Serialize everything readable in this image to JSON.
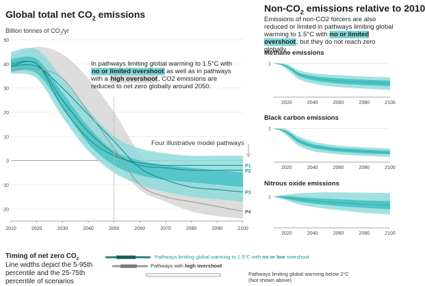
{
  "left_panel": {
    "title": "Global total net CO2 emissions",
    "title_pre": "Global total net CO",
    "title_sub": "2",
    "title_post": " emissions",
    "unit_pre": "Billion tonnes of CO",
    "unit_sub": "2",
    "unit_post": "/yr",
    "annotation": {
      "p1": "In pathways limiting global warming to 1.5°C with ",
      "hl1": "no or limited overshoot",
      "p2": " as well as in pathways with a ",
      "hl2": "high overshoot",
      "p3": ", CO2 emissions are reduced to net zero globally around 2050."
    },
    "pathways_label": "Four illustrative model pathways"
  },
  "right_panel": {
    "title_pre": "Non-CO",
    "title_sub": "2",
    "title_post": " emissions relative to 2010",
    "desc": {
      "p1": "Emissions of non-CO2 forcers are also reduced or limited in pathways limiting global warming to 1.5°C with ",
      "hl": "no or limited overshoot",
      "p2": ", but they do not reach zero globally."
    },
    "methane_title": "Methane emissions",
    "black_carbon_title": "Black carbon emissions",
    "nitrous_title": "Nitrous oxide emissions"
  },
  "legend": {
    "timing_title_pre": "Timing of net zero CO",
    "timing_title_sub": "2",
    "timing_desc": "Line widths depict the 5-95th percentile and the 25-75th percentile of scenarios",
    "item1_pre": "Pathways limiting global warming to 1.5°C with ",
    "item1_bold": "no or low",
    "item1_post": " overshoot",
    "item2_pre": "Pathways with ",
    "item2_bold": "high overshoot",
    "item3_line1": "Pathways limiting global warming below 2°C",
    "item3_line2": "(Not shown above)"
  },
  "colors": {
    "teal_outer": "#8fdada",
    "teal_inner": "#3cbfc0",
    "teal_line": "#1f8a8b",
    "grey_band": "#d6d6d6",
    "grey_line": "#9a9a9a",
    "label_teal": "#1a9a9a"
  },
  "chart_data": [
    {
      "type": "area",
      "title": "Global total net CO2 emissions",
      "ylabel": "Billion tonnes of CO2/yr",
      "xlim": [
        2010,
        2100
      ],
      "ylim": [
        -25,
        50
      ],
      "xticks": [
        2010,
        2020,
        2030,
        2040,
        2050,
        2060,
        2070,
        2080,
        2090,
        2100
      ],
      "yticks": [
        50,
        40,
        30,
        20,
        10,
        0,
        -10,
        -20
      ],
      "bands": [
        {
          "name": "high overshoot 5-95th",
          "x": [
            2010,
            2020,
            2030,
            2040,
            2050,
            2060,
            2070,
            2080,
            2090,
            2100
          ],
          "lower": [
            37,
            38,
            24,
            12,
            0,
            -12,
            -17,
            -21,
            -23,
            -24
          ],
          "upper": [
            43,
            47,
            44,
            34,
            20,
            3,
            -6,
            -8,
            -10,
            -12
          ]
        },
        {
          "name": "no or limited overshoot 5-95th",
          "x": [
            2010,
            2020,
            2030,
            2040,
            2050,
            2060,
            2070,
            2080,
            2090,
            2100
          ],
          "lower": [
            36,
            34,
            18,
            4,
            -5,
            -10,
            -13,
            -15,
            -16,
            -17
          ],
          "upper": [
            45,
            46,
            34,
            21,
            10,
            5,
            3,
            2,
            2,
            2
          ]
        },
        {
          "name": "no or limited overshoot 25-75th",
          "x": [
            2010,
            2020,
            2030,
            2040,
            2050,
            2060,
            2070,
            2080,
            2090,
            2100
          ],
          "lower": [
            37,
            36,
            22,
            7,
            -2,
            -6,
            -8,
            -9,
            -10,
            -11
          ],
          "upper": [
            42,
            42,
            28,
            14,
            4,
            0,
            -2,
            -3,
            -4,
            -5
          ]
        }
      ],
      "series": [
        {
          "name": "P1",
          "x": [
            2010,
            2020,
            2030,
            2040,
            2050,
            2060,
            2070,
            2080,
            2090,
            2100
          ],
          "values": [
            39,
            40,
            22,
            9,
            2,
            -1,
            -2,
            -2,
            -2,
            -2
          ]
        },
        {
          "name": "P2",
          "x": [
            2010,
            2020,
            2030,
            2040,
            2050,
            2060,
            2070,
            2080,
            2090,
            2100
          ],
          "values": [
            40,
            40,
            25,
            12,
            3,
            -2,
            -3,
            -4,
            -4,
            -4
          ]
        },
        {
          "name": "P3",
          "x": [
            2010,
            2020,
            2030,
            2040,
            2050,
            2060,
            2070,
            2080,
            2090,
            2100
          ],
          "values": [
            39,
            39,
            30,
            19,
            8,
            -3,
            -8,
            -11,
            -12,
            -13
          ]
        },
        {
          "name": "P4",
          "x": [
            2010,
            2020,
            2030,
            2040,
            2050,
            2060,
            2070,
            2080,
            2090,
            2100
          ],
          "values": [
            37,
            38,
            34,
            20,
            5,
            -10,
            -15,
            -17,
            -19,
            -21
          ]
        }
      ],
      "marker_year": 2050
    },
    {
      "type": "area",
      "title": "Methane emissions",
      "xlim": [
        2010,
        2100
      ],
      "ylim": [
        0,
        1.1
      ],
      "xticks": [
        2020,
        2040,
        2060,
        2080,
        2100
      ],
      "yticks": [
        1
      ],
      "x": [
        2010,
        2015,
        2020,
        2025,
        2030,
        2040,
        2050,
        2060,
        2080,
        2100
      ],
      "outer": {
        "lower": [
          1,
          0.95,
          0.82,
          0.65,
          0.5,
          0.38,
          0.31,
          0.27,
          0.22,
          0.18
        ],
        "upper": [
          1,
          1.0,
          0.98,
          0.88,
          0.78,
          0.7,
          0.66,
          0.64,
          0.6,
          0.57
        ]
      },
      "inner": {
        "lower": [
          1,
          0.97,
          0.88,
          0.74,
          0.6,
          0.48,
          0.42,
          0.38,
          0.33,
          0.3
        ],
        "upper": [
          1,
          0.99,
          0.94,
          0.82,
          0.7,
          0.62,
          0.57,
          0.54,
          0.5,
          0.47
        ]
      },
      "median": [
        1,
        0.98,
        0.9,
        0.78,
        0.66,
        0.55,
        0.5,
        0.46,
        0.42,
        0.38
      ]
    },
    {
      "type": "area",
      "title": "Black carbon emissions",
      "xlim": [
        2010,
        2100
      ],
      "ylim": [
        0,
        1.1
      ],
      "xticks": [
        2020,
        2040,
        2060,
        2080,
        2100
      ],
      "yticks": [
        1
      ],
      "x": [
        2010,
        2015,
        2020,
        2025,
        2030,
        2040,
        2050,
        2060,
        2080,
        2100
      ],
      "outer": {
        "lower": [
          1,
          0.93,
          0.78,
          0.6,
          0.45,
          0.3,
          0.24,
          0.2,
          0.15,
          0.12
        ],
        "upper": [
          1,
          1.0,
          0.97,
          0.86,
          0.74,
          0.6,
          0.52,
          0.47,
          0.42,
          0.38
        ]
      },
      "inner": {
        "lower": [
          1,
          0.95,
          0.84,
          0.68,
          0.54,
          0.4,
          0.33,
          0.28,
          0.23,
          0.2
        ],
        "upper": [
          1,
          0.98,
          0.92,
          0.8,
          0.66,
          0.52,
          0.45,
          0.4,
          0.35,
          0.31
        ]
      },
      "median": [
        1,
        0.96,
        0.88,
        0.74,
        0.6,
        0.46,
        0.39,
        0.34,
        0.29,
        0.25
      ]
    },
    {
      "type": "area",
      "title": "Nitrous oxide emissions",
      "xlim": [
        2010,
        2100
      ],
      "ylim": [
        0,
        1.2
      ],
      "xticks": [
        2020,
        2040,
        2060,
        2080,
        2100
      ],
      "yticks": [
        1
      ],
      "x": [
        2010,
        2015,
        2020,
        2025,
        2030,
        2040,
        2050,
        2060,
        2080,
        2100
      ],
      "outer": {
        "lower": [
          1,
          0.95,
          0.88,
          0.8,
          0.74,
          0.66,
          0.6,
          0.55,
          0.46,
          0.4
        ],
        "upper": [
          1,
          1.05,
          1.08,
          1.1,
          1.12,
          1.14,
          1.15,
          1.15,
          1.14,
          1.13
        ]
      },
      "inner": {
        "lower": [
          1,
          0.97,
          0.93,
          0.88,
          0.84,
          0.78,
          0.73,
          0.69,
          0.63,
          0.58
        ],
        "upper": [
          1,
          1.02,
          1.02,
          1.01,
          0.99,
          0.96,
          0.94,
          0.92,
          0.88,
          0.86
        ]
      },
      "median": [
        1,
        0.99,
        0.97,
        0.94,
        0.91,
        0.87,
        0.83,
        0.8,
        0.75,
        0.72
      ]
    }
  ]
}
